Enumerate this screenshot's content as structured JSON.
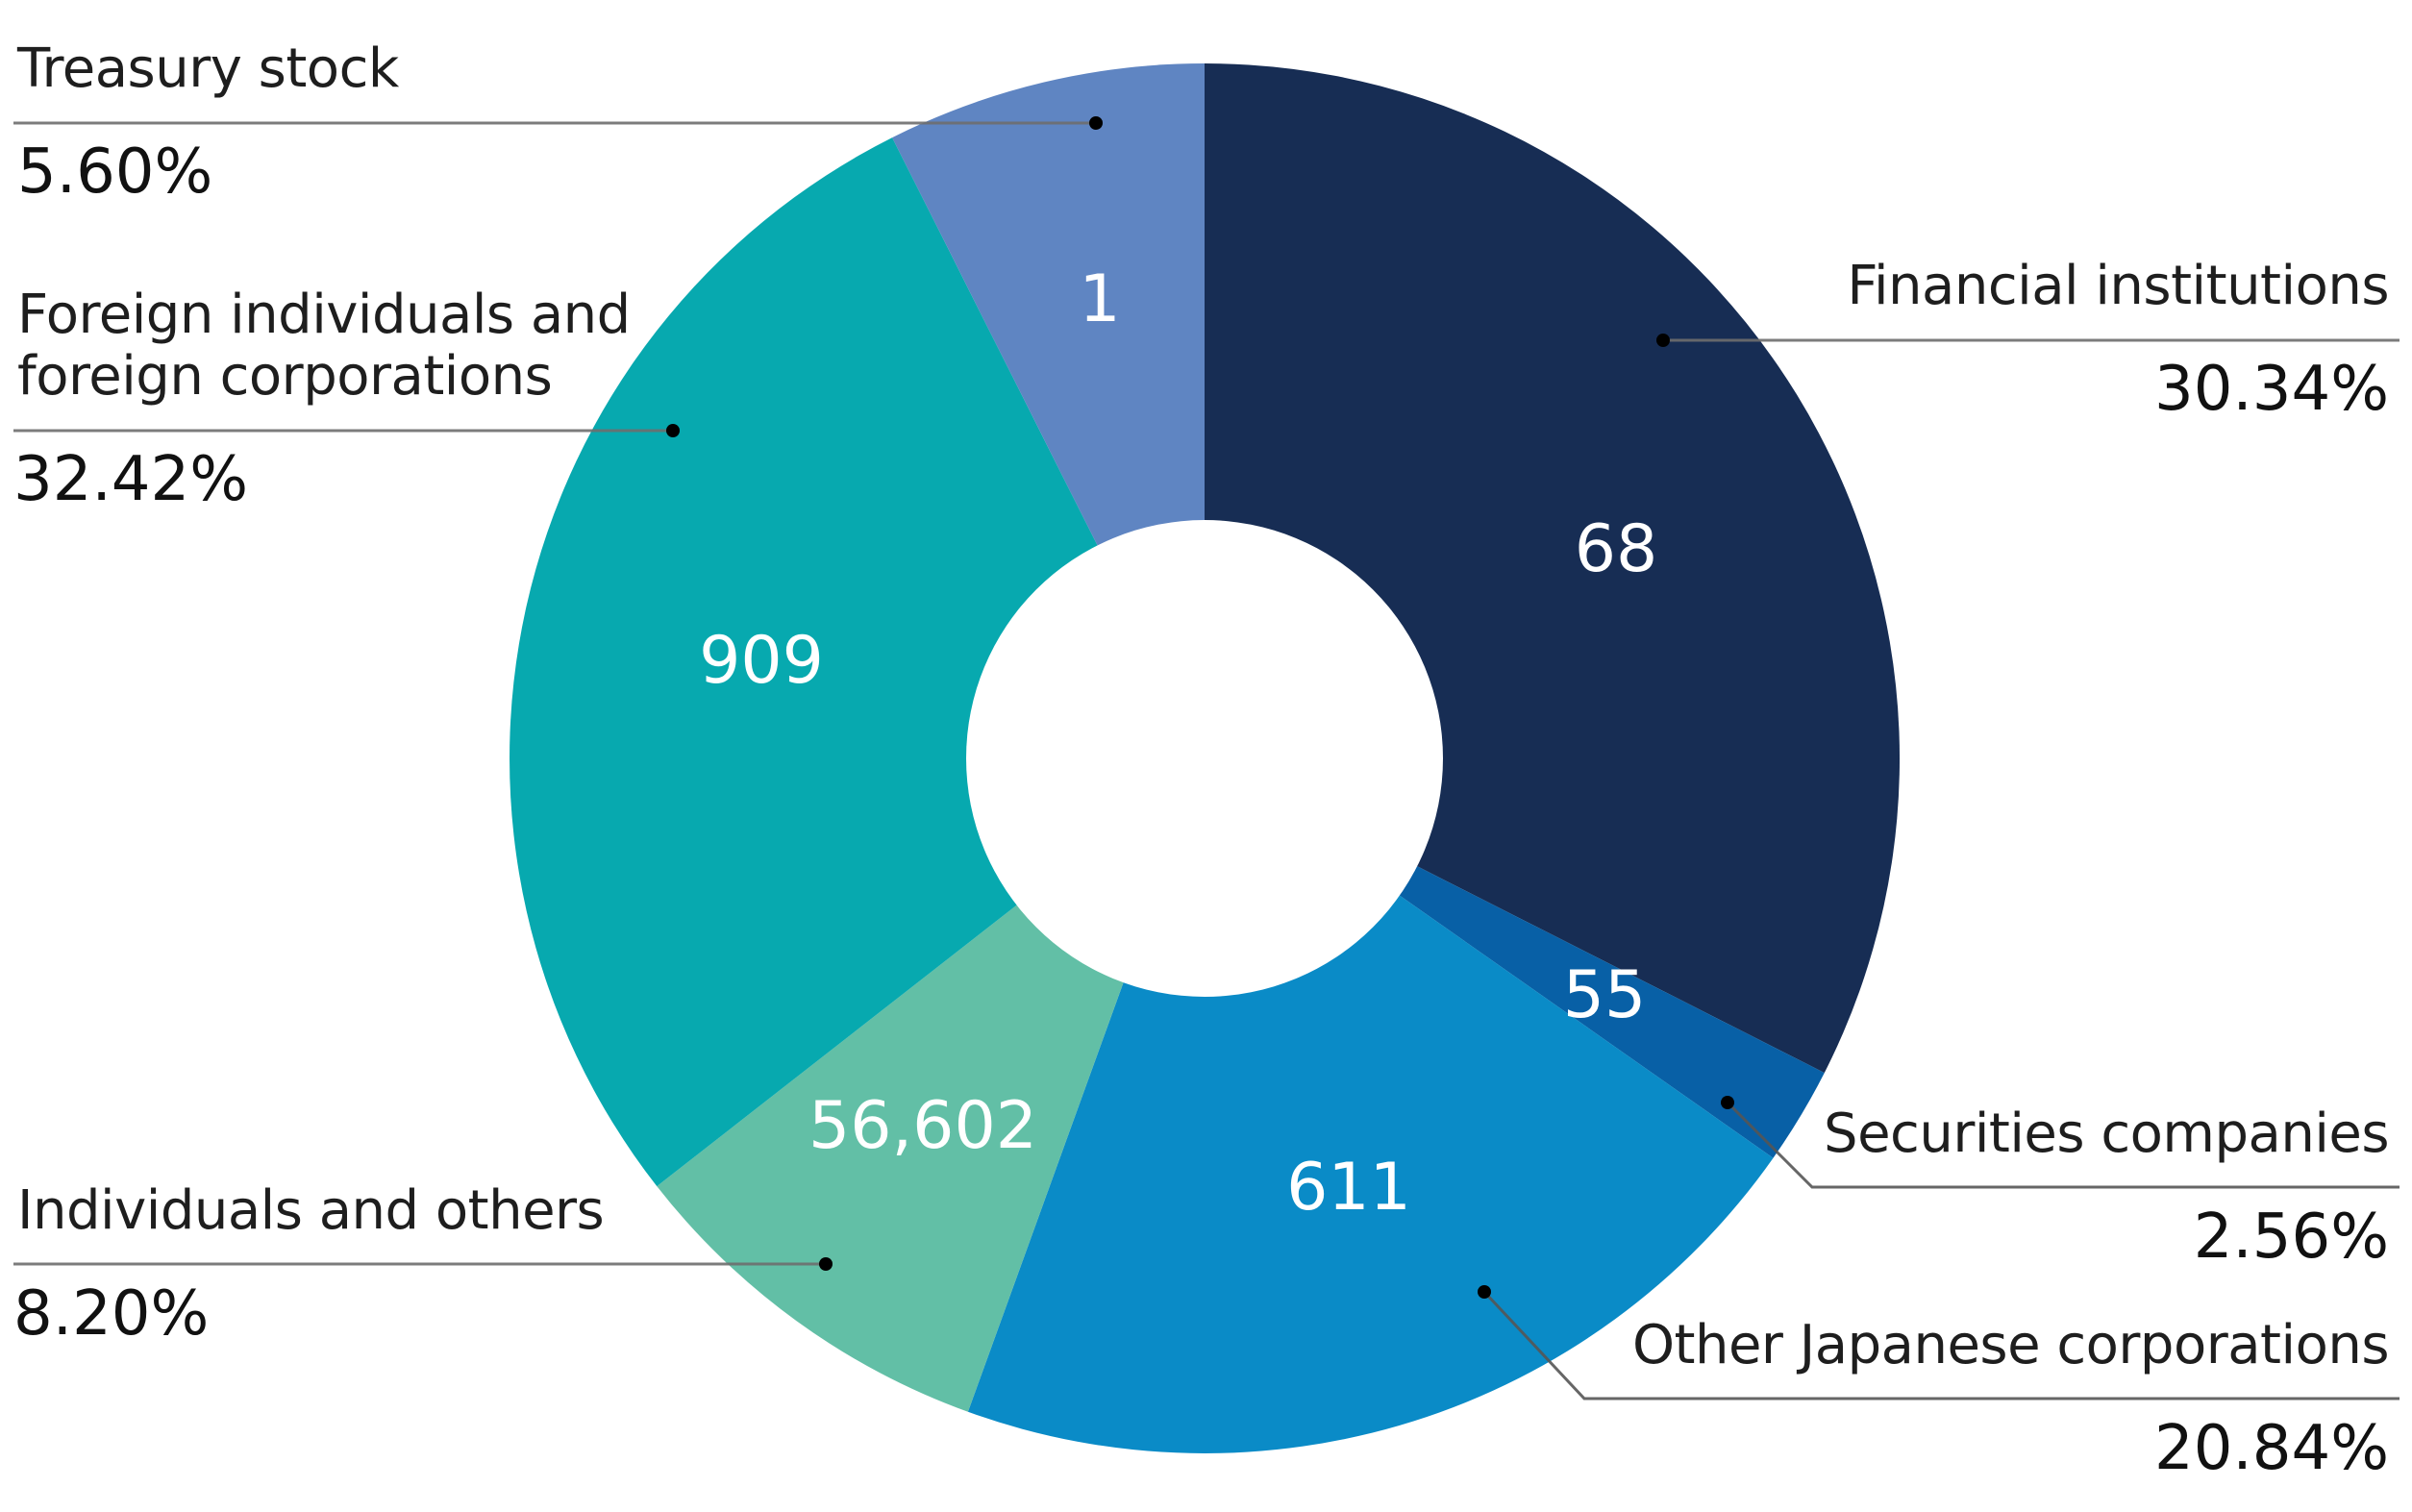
{
  "chart_data": {
    "type": "pie",
    "variant": "donut",
    "title": "",
    "unit": "%",
    "categories": [
      "Financial institutions",
      "Securities companies",
      "Other Japanese corporations",
      "Individuals and others",
      "Foreign individuals and foreign corporations",
      "Treasury stock"
    ],
    "values": [
      30.34,
      2.56,
      20.84,
      8.2,
      32.42,
      5.6
    ],
    "percent_labels": [
      "30.34%",
      "2.56%",
      "20.84%",
      "8.20%",
      "32.42%",
      "5.60%"
    ],
    "shareholder_counts": [
      68,
      55,
      611,
      56602,
      909,
      1
    ],
    "shareholder_count_labels": [
      "68",
      "55",
      "611",
      "56,602",
      "909",
      "1"
    ],
    "colors": [
      "#172D54",
      "#0860A6",
      "#0A8BC7",
      "#62BFA6",
      "#07A9AF",
      "#5F85C2"
    ],
    "start_angle": "12 o'clock",
    "direction": "clockwise",
    "legend": "none (callout labels with leader lines)"
  },
  "labels": {
    "financial": {
      "name": "Financial institutions",
      "pct": "30.34%",
      "count": "68"
    },
    "securities": {
      "name": "Securities companies",
      "pct": "2.56%",
      "count": "55"
    },
    "other_jp": {
      "name": "Other Japanese corporations",
      "pct": "20.84%",
      "count": "611"
    },
    "individuals": {
      "name": "Individuals and others",
      "pct": "8.20%",
      "count": "56,602"
    },
    "foreign": {
      "name_line1": "Foreign individuals and",
      "name_line2": "foreign corporations",
      "pct": "32.42%",
      "count": "909"
    },
    "treasury": {
      "name": "Treasury stock",
      "pct": "5.60%",
      "count": "1"
    }
  },
  "colors": {
    "leader_line": "#6e6e6e",
    "leader_dot": "#000000"
  }
}
